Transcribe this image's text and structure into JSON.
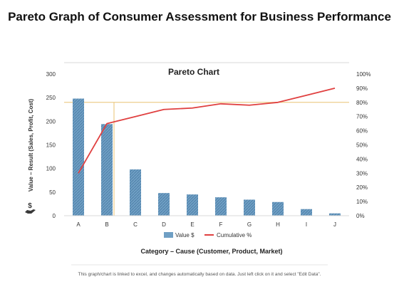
{
  "page_title": "Pareto Graph of Consumer Assessment for Business Performance",
  "footnote": "This graph/chart is linked to excel, and changes automatically based on data. Just left click on it and select \"Edit Data\".",
  "icon": "money-hand-icon",
  "colors": {
    "bar": "#6f9fc4",
    "line": "#e04040",
    "guide": "#e8c272",
    "text": "#333333",
    "axis": "#d9d9d9"
  },
  "chart_data": {
    "type": "bar",
    "title": "Pareto Chart",
    "xlabel": "Category – Cause (Customer, Product, Market)",
    "ylabel": "Value – Result (Sales, Profit, Cost)",
    "categories": [
      "A",
      "B",
      "C",
      "D",
      "E",
      "F",
      "G",
      "H",
      "I",
      "J"
    ],
    "series": [
      {
        "name": "Value $",
        "type": "bar",
        "axis": "left",
        "values": [
          248,
          194,
          98,
          48,
          45,
          39,
          34,
          29,
          14,
          5
        ]
      },
      {
        "name": "Cumulative %",
        "type": "line",
        "axis": "right",
        "values": [
          30,
          65,
          70,
          75,
          76,
          79,
          78,
          80,
          85,
          90
        ]
      }
    ],
    "ylim": [
      0,
      300
    ],
    "yticks": [
      "0",
      "50",
      "100",
      "150",
      "200",
      "250",
      "300"
    ],
    "y2lim": [
      0,
      100
    ],
    "y2ticks": [
      "0%",
      "10%",
      "20%",
      "30%",
      "40%",
      "50%",
      "60%",
      "70%",
      "80%",
      "90%",
      "100%"
    ],
    "reference": {
      "y2": 80,
      "x_category": "B"
    },
    "grid": false,
    "legend": "bottom"
  }
}
